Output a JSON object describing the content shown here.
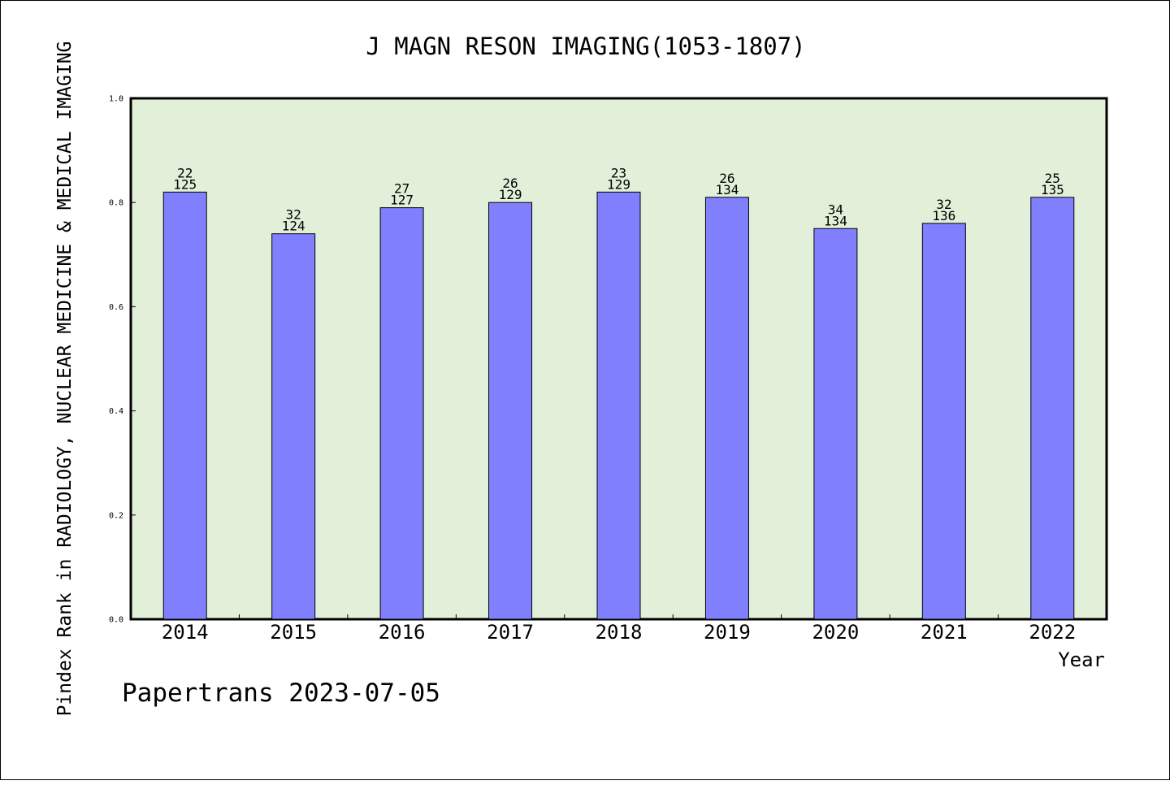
{
  "chart_data": {
    "type": "bar",
    "title": "J MAGN RESON IMAGING(1053-1807)",
    "xlabel": "Year",
    "ylabel": "Pindex Rank in RADIOLOGY, NUCLEAR MEDICINE & MEDICAL IMAGING",
    "categories": [
      "2014",
      "2015",
      "2016",
      "2017",
      "2018",
      "2019",
      "2020",
      "2021",
      "2022"
    ],
    "values": [
      0.82,
      0.74,
      0.79,
      0.8,
      0.82,
      0.81,
      0.75,
      0.76,
      0.81
    ],
    "rank": [
      "22",
      "32",
      "27",
      "26",
      "23",
      "26",
      "34",
      "32",
      "25"
    ],
    "total": [
      "125",
      "124",
      "127",
      "129",
      "129",
      "134",
      "134",
      "136",
      "135"
    ],
    "ylim": [
      0,
      1.0
    ],
    "yticks": [
      "0.0",
      "0.2",
      "0.4",
      "0.6",
      "0.8",
      "1.0"
    ],
    "grid": false,
    "colors": {
      "bar": "#8080ff",
      "plot_bg": "#e2f0d9"
    }
  },
  "footer": "Papertrans 2023-07-05"
}
